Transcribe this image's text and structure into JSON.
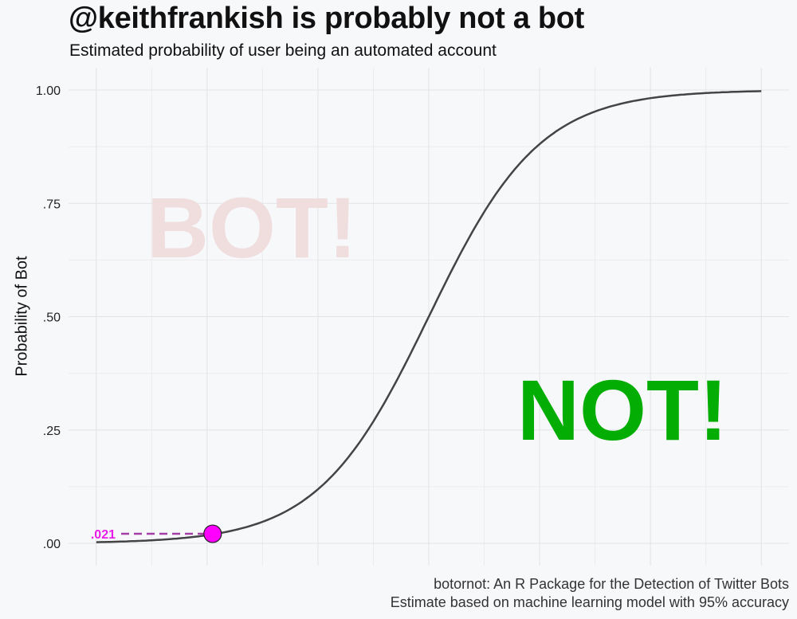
{
  "title": "@keithfrankish is probably not a bot",
  "subtitle": "Estimated probability of user being an automated account",
  "caption": {
    "line1": "botornot: An R Package for the Detection of Twitter Bots",
    "line2": "Estimate based on machine learning model with 95% accuracy"
  },
  "chart_data": {
    "type": "line",
    "ylabel": "Probability of Bot",
    "xlabel": "",
    "ylim": [
      0,
      1
    ],
    "yticks": [
      {
        "value": 0.0,
        "label": ".00"
      },
      {
        "value": 0.25,
        "label": ".25"
      },
      {
        "value": 0.5,
        "label": ".50"
      },
      {
        "value": 0.75,
        "label": ".75"
      },
      {
        "value": 1.0,
        "label": "1.00"
      }
    ],
    "curve": {
      "kind": "logistic",
      "x": [
        -6,
        -5,
        -4,
        -3,
        -2,
        -1,
        0,
        1,
        2,
        3,
        4,
        5,
        6
      ],
      "y": [
        0.0025,
        0.0067,
        0.018,
        0.047,
        0.119,
        0.269,
        0.5,
        0.731,
        0.881,
        0.953,
        0.982,
        0.993,
        0.9975
      ],
      "color": "#444444"
    },
    "highlight": {
      "x": -3.9,
      "y": 0.021,
      "label": ".021",
      "color": "#ff00ff",
      "label_color": "#e81ce8"
    },
    "annotations": {
      "bot_text": "BOT!",
      "bot_color": "#f0dede",
      "not_text": "NOT!",
      "not_color": "#03ad03"
    },
    "grid": true,
    "legend": "none"
  }
}
